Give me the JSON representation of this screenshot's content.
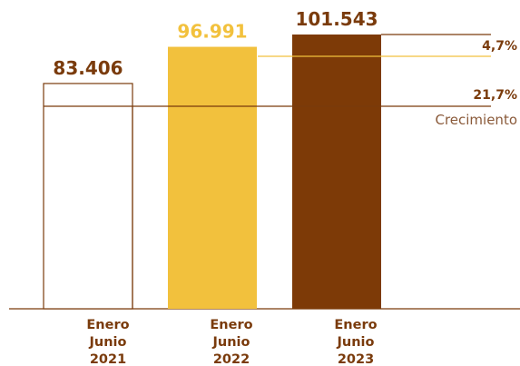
{
  "chart_data": {
    "type": "bar",
    "categories": [
      [
        "Enero",
        "Junio",
        "2021"
      ],
      [
        "Enero",
        "Junio",
        "2022"
      ],
      [
        "Enero",
        "Junio",
        "2023"
      ]
    ],
    "values": [
      83406,
      96991,
      101543
    ],
    "value_labels": [
      "83.406",
      "96.991",
      "101.543"
    ],
    "bar_colors": [
      "#ffffff",
      "#f2c13d",
      "#7d3a07"
    ],
    "label_colors": [
      "#7a3b0c",
      "#f2c13d",
      "#7a3b0c"
    ],
    "grid": false,
    "annotations": [
      {
        "text": "4,7%",
        "from": "96.991",
        "to": "101.543"
      },
      {
        "text": "21,7%",
        "from": "83.406",
        "to": "101.543"
      },
      {
        "text": "Crecimiento"
      }
    ]
  }
}
